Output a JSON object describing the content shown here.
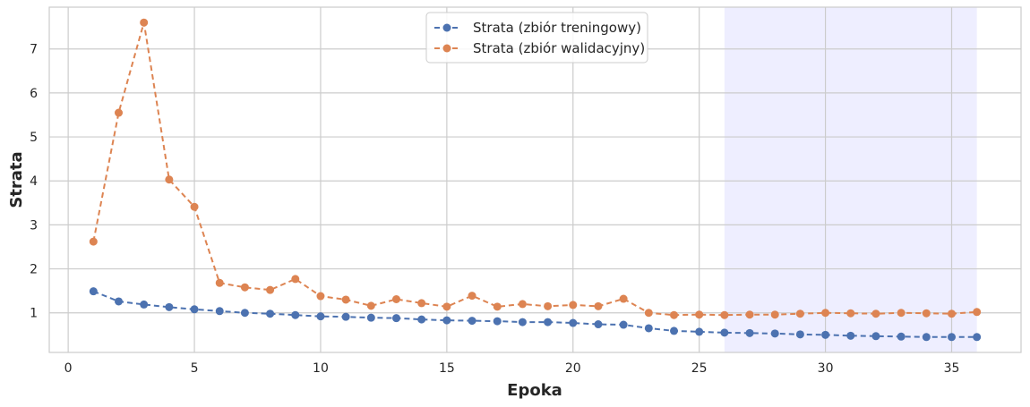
{
  "chart_data": {
    "type": "line",
    "xlabel": "Epoka",
    "ylabel": "Strata",
    "xlim": [
      -0.75,
      37.75
    ],
    "ylim": [
      0.1,
      7.95
    ],
    "x_ticks": [
      0,
      5,
      10,
      15,
      20,
      25,
      30,
      35
    ],
    "y_ticks": [
      1,
      2,
      3,
      4,
      5,
      6,
      7
    ],
    "grid": true,
    "legend_position": "top-center",
    "highlight_x_range": [
      26,
      36
    ],
    "highlight_color": "#eeeeff",
    "x": [
      1,
      2,
      3,
      4,
      5,
      6,
      7,
      8,
      9,
      10,
      11,
      12,
      13,
      14,
      15,
      16,
      17,
      18,
      19,
      20,
      21,
      22,
      23,
      24,
      25,
      26,
      27,
      28,
      29,
      30,
      31,
      32,
      33,
      34,
      35,
      36
    ],
    "series": [
      {
        "name": "Strata (zbiór treningowy)",
        "color": "#4c72b0",
        "values": [
          1.49,
          1.26,
          1.19,
          1.13,
          1.08,
          1.04,
          1.0,
          0.98,
          0.95,
          0.92,
          0.91,
          0.89,
          0.88,
          0.85,
          0.83,
          0.82,
          0.81,
          0.79,
          0.79,
          0.77,
          0.74,
          0.73,
          0.65,
          0.59,
          0.57,
          0.55,
          0.54,
          0.53,
          0.51,
          0.5,
          0.48,
          0.47,
          0.46,
          0.45,
          0.45,
          0.45
        ]
      },
      {
        "name": "Strata (zbiór walidacyjny)",
        "color": "#dd8452",
        "values": [
          2.62,
          5.55,
          7.6,
          4.03,
          3.41,
          1.68,
          1.58,
          1.52,
          1.77,
          1.38,
          1.3,
          1.16,
          1.31,
          1.22,
          1.14,
          1.39,
          1.14,
          1.2,
          1.15,
          1.18,
          1.15,
          1.32,
          1.0,
          0.95,
          0.96,
          0.95,
          0.96,
          0.96,
          0.98,
          1.0,
          0.99,
          0.98,
          1.0,
          0.99,
          0.98,
          1.02
        ]
      }
    ]
  }
}
